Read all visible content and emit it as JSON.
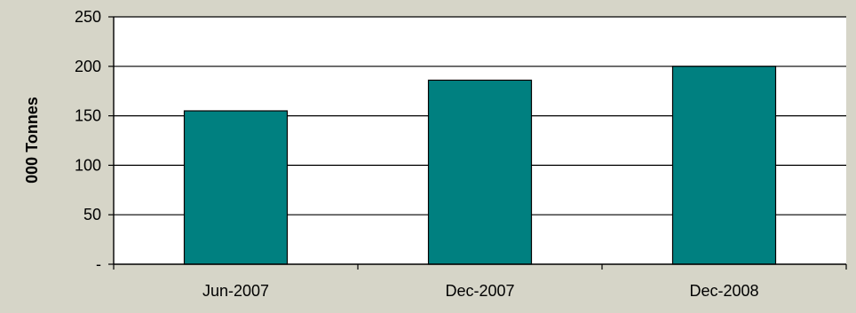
{
  "colors": {
    "background": "#d6d5c8",
    "plot_background": "#ffffff",
    "bar_fill": "#008080",
    "bar_stroke": "#000000",
    "grid": "#000000"
  },
  "chart_data": {
    "type": "bar",
    "title": "",
    "xlabel": "",
    "ylabel": "000 Tonnes",
    "categories": [
      "Jun-2007",
      "Dec-2007",
      "Dec-2008"
    ],
    "values": [
      155,
      186,
      200
    ],
    "ylim": [
      0,
      250
    ],
    "yticks": [
      0,
      50,
      100,
      150,
      200,
      250
    ],
    "ytick_labels": [
      "-",
      "50",
      "100",
      "150",
      "200",
      "250"
    ],
    "grid": true,
    "legend": "none"
  }
}
